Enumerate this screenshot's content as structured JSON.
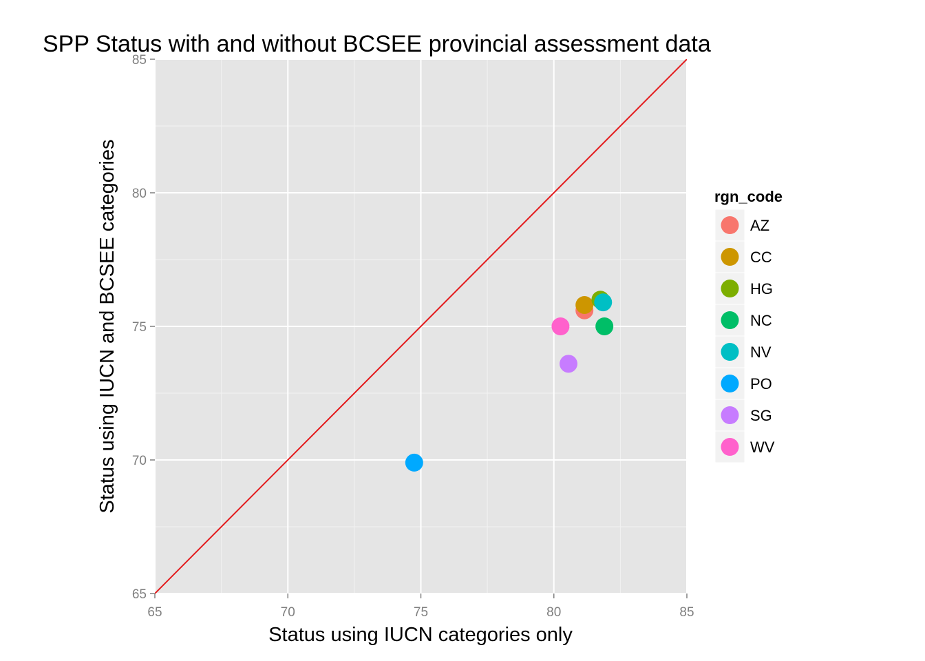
{
  "chart_data": {
    "type": "scatter",
    "title": "SPP Status with and without BCSEE provincial assessment data",
    "xlabel": "Status using IUCN categories only",
    "ylabel": "Status using IUCN and BCSEE categories",
    "xlim": [
      65,
      85
    ],
    "ylim": [
      65,
      85
    ],
    "x_ticks": [
      65,
      70,
      75,
      80,
      85
    ],
    "y_ticks": [
      65,
      70,
      75,
      80,
      85
    ],
    "grid": true,
    "reference_line": {
      "slope": 1,
      "intercept": 0,
      "color": "#e31a1c"
    },
    "legend": {
      "title": "rgn_code",
      "placement": "right"
    },
    "series": [
      {
        "name": "AZ",
        "color": "#F8766D",
        "x": [
          81.15
        ],
        "y": [
          75.6
        ]
      },
      {
        "name": "CC",
        "color": "#CD9600",
        "x": [
          81.15
        ],
        "y": [
          75.8
        ]
      },
      {
        "name": "HG",
        "color": "#7CAE00",
        "x": [
          81.75
        ],
        "y": [
          76.0
        ]
      },
      {
        "name": "NC",
        "color": "#00BE67",
        "x": [
          81.9
        ],
        "y": [
          75.0
        ]
      },
      {
        "name": "NV",
        "color": "#00BFC4",
        "x": [
          81.85
        ],
        "y": [
          75.9
        ]
      },
      {
        "name": "PO",
        "color": "#00A9FF",
        "x": [
          74.75
        ],
        "y": [
          69.9
        ]
      },
      {
        "name": "SG",
        "color": "#C77CFF",
        "x": [
          80.55
        ],
        "y": [
          73.6
        ]
      },
      {
        "name": "WV",
        "color": "#FF61CC",
        "x": [
          80.25
        ],
        "y": [
          75.0
        ]
      }
    ]
  }
}
